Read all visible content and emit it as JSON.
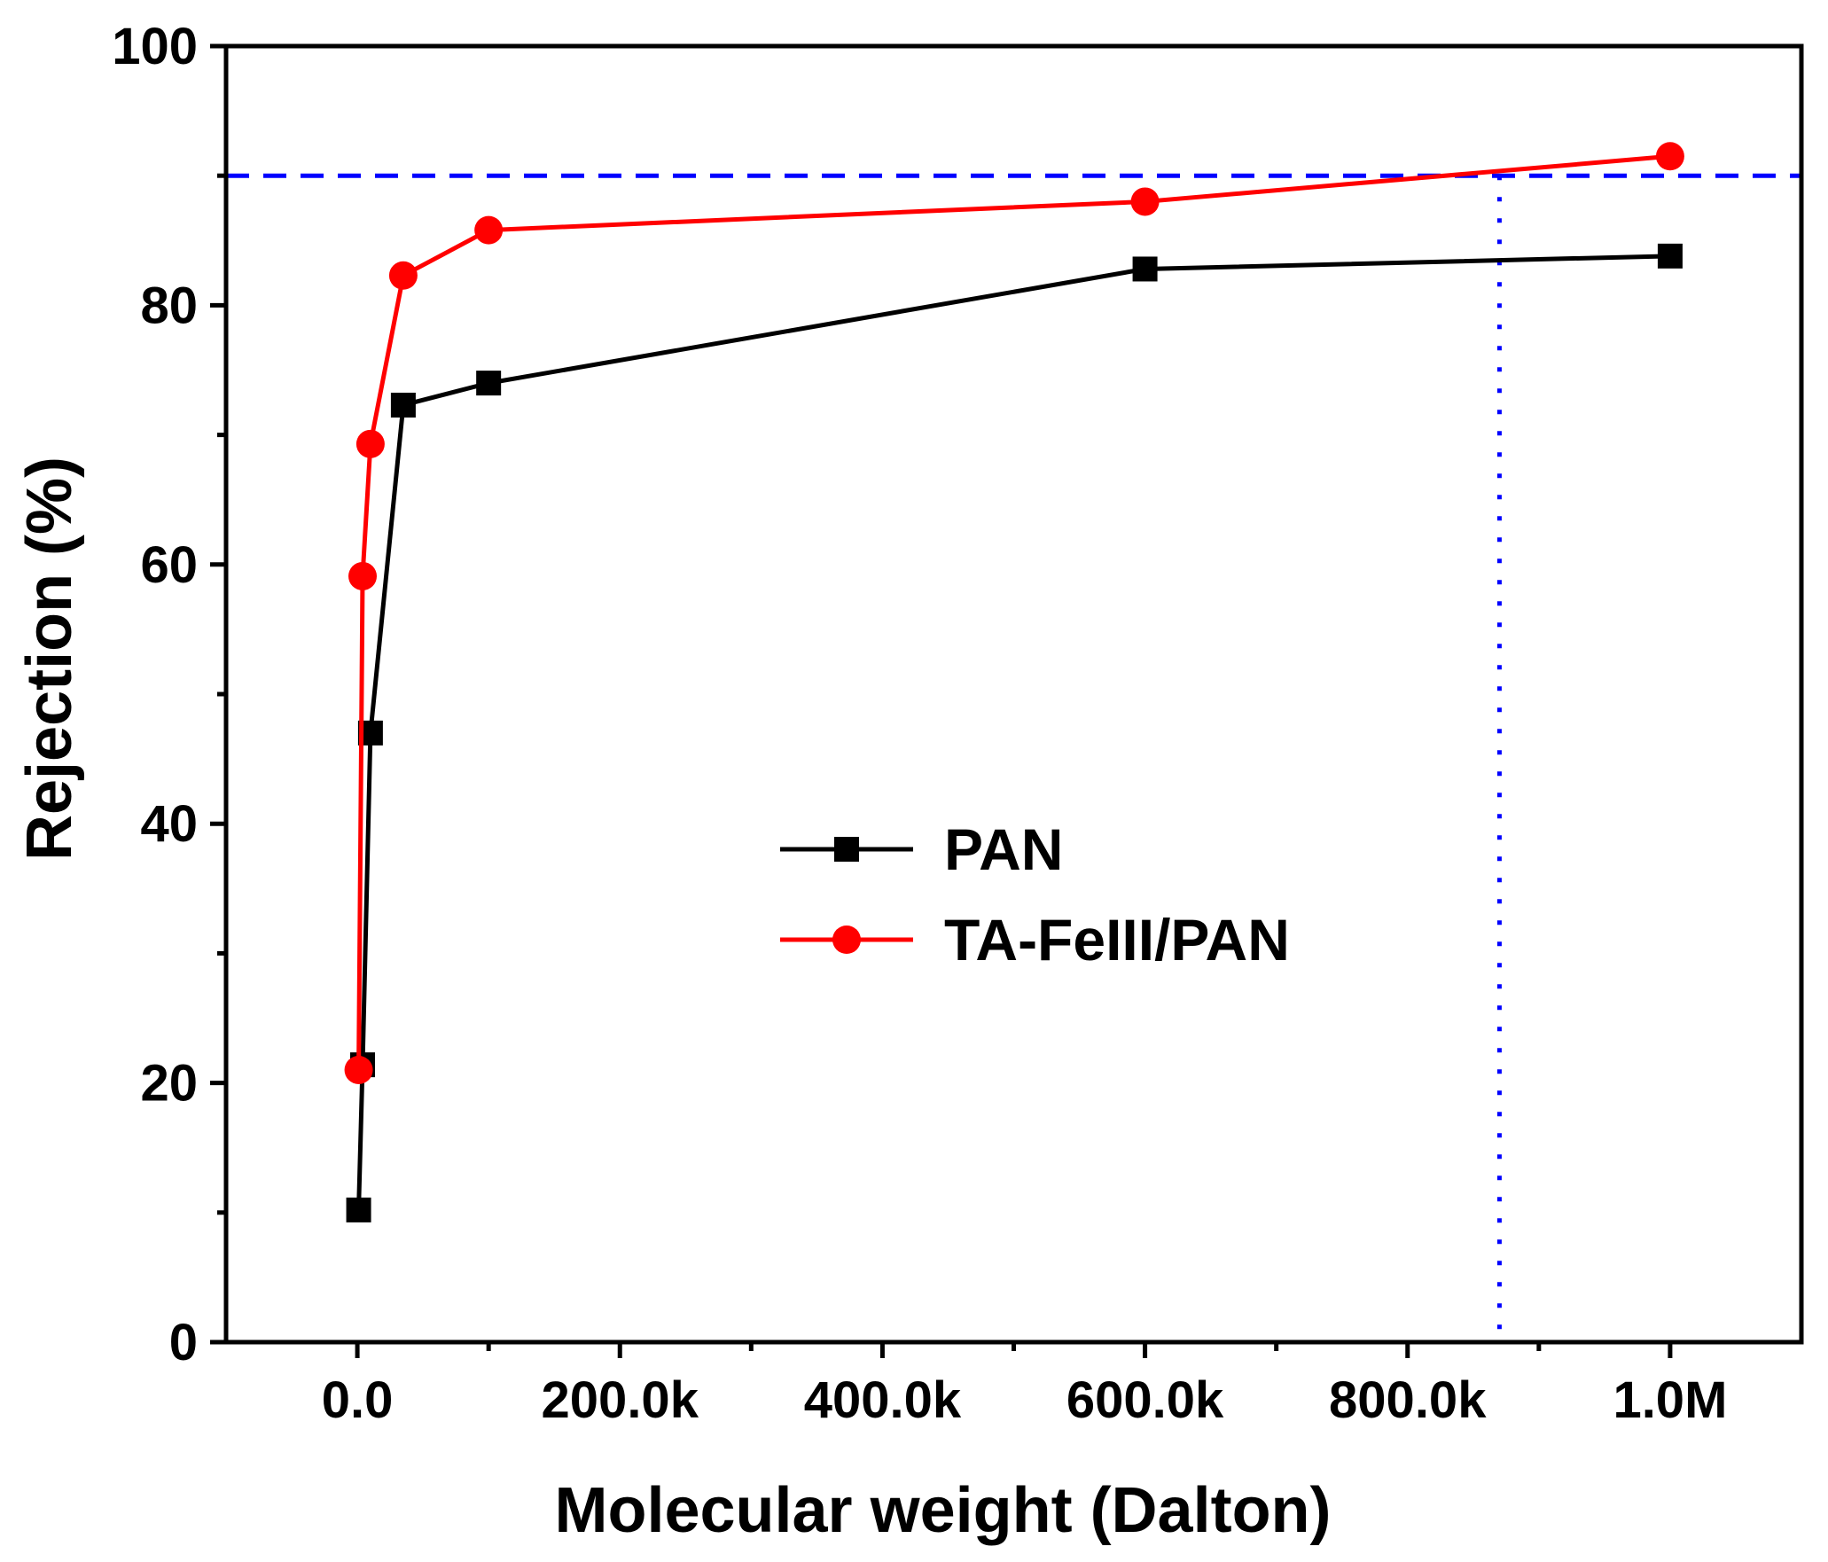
{
  "chart_data": {
    "type": "line",
    "title": "",
    "xlabel": "Molecular weight (Dalton)",
    "ylabel": "Rejection (%)",
    "xlim": [
      -100000,
      1100000
    ],
    "ylim": [
      0,
      100
    ],
    "xticks": [
      {
        "value": 0,
        "label": "0.0"
      },
      {
        "value": 200000,
        "label": "200.0k"
      },
      {
        "value": 400000,
        "label": "400.0k"
      },
      {
        "value": 600000,
        "label": "600.0k"
      },
      {
        "value": 800000,
        "label": "800.0k"
      },
      {
        "value": 1000000,
        "label": "1.0M"
      }
    ],
    "xminor": [
      100000,
      300000,
      500000,
      700000,
      900000
    ],
    "yticks": [
      {
        "value": 0,
        "label": "0"
      },
      {
        "value": 20,
        "label": "20"
      },
      {
        "value": 40,
        "label": "40"
      },
      {
        "value": 60,
        "label": "60"
      },
      {
        "value": 80,
        "label": "80"
      },
      {
        "value": 100,
        "label": "100"
      }
    ],
    "yminor": [
      10,
      30,
      50,
      70,
      90
    ],
    "grid": false,
    "legend_position": "center-right",
    "series": [
      {
        "name": "PAN",
        "color": "#000000",
        "marker": "square",
        "x": [
          1000,
          4000,
          10000,
          35000,
          100000,
          600000,
          1000000
        ],
        "y": [
          10.2,
          21.4,
          47.0,
          72.3,
          74.0,
          82.8,
          83.8
        ]
      },
      {
        "name": "TA-FeIII/PAN",
        "color": "#ff0000",
        "marker": "circle",
        "x": [
          1000,
          4000,
          10000,
          35000,
          100000,
          600000,
          1000000
        ],
        "y": [
          21.0,
          59.1,
          69.3,
          82.3,
          85.8,
          88.0,
          91.5
        ]
      }
    ],
    "reference_lines": [
      {
        "orientation": "horizontal",
        "value": 90,
        "color": "#0000ff",
        "style": "dashed"
      },
      {
        "orientation": "vertical",
        "value": 870000,
        "color": "#0000ff",
        "style": "dotted"
      }
    ]
  }
}
